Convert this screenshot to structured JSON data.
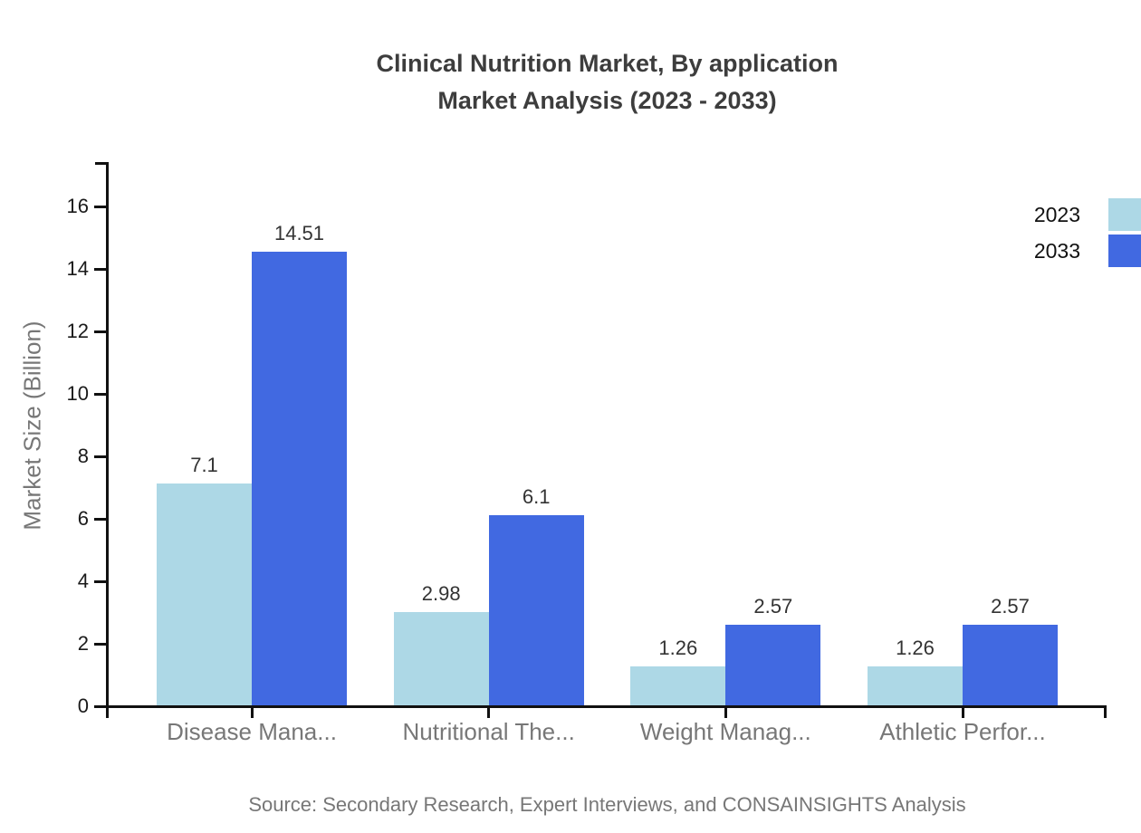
{
  "header": {
    "title_line1": "Clinical Nutrition Market, By application",
    "title_line2": "Market Analysis (2023 - 2033)"
  },
  "chart_data": {
    "type": "bar",
    "title": "Clinical Nutrition Market, By application Market Analysis (2023 - 2033)",
    "categories": [
      "Disease Mana...",
      "Nutritional The...",
      "Weight Manag...",
      "Athletic Perfor..."
    ],
    "series": [
      {
        "name": "2023",
        "color": "#ADD8E6",
        "values": [
          7.1,
          2.98,
          1.26,
          1.26
        ]
      },
      {
        "name": "2033",
        "color": "#4169E1",
        "values": [
          14.51,
          6.1,
          2.57,
          2.57
        ]
      }
    ],
    "value_labels": [
      "7.1",
      "14.51",
      "2.98",
      "6.1",
      "1.26",
      "2.57",
      "1.26",
      "2.57"
    ],
    "xlabel": "",
    "ylabel": "Market Size (Billion)",
    "ylim": [
      0,
      17.4
    ],
    "yticks": [
      0,
      2,
      4,
      6,
      8,
      10,
      12,
      14,
      16
    ],
    "grid": false,
    "legend_position": "top-right",
    "axis_color": "#111111",
    "text_colors": {
      "title": "#3d3d3d",
      "labels": "#777777",
      "ticks": "#1a1a1a"
    }
  },
  "footer": {
    "source": "Source: Secondary Research, Expert Interviews, and CONSAINSIGHTS Analysis"
  }
}
